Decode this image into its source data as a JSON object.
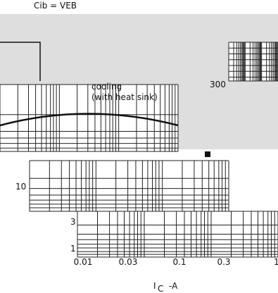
{
  "header": {
    "formula": "Cib = VEB"
  },
  "annotation": {
    "lines": [
      "cooling",
      "(with heat sink)"
    ]
  },
  "y_labels": [
    "300",
    "10",
    "3",
    "1"
  ],
  "x_labels": [
    "0.01",
    "0.03",
    "0.1",
    "0.3",
    "1"
  ],
  "x_axis_label": {
    "main": "I",
    "sub": "C",
    "unit": "-A"
  }
}
